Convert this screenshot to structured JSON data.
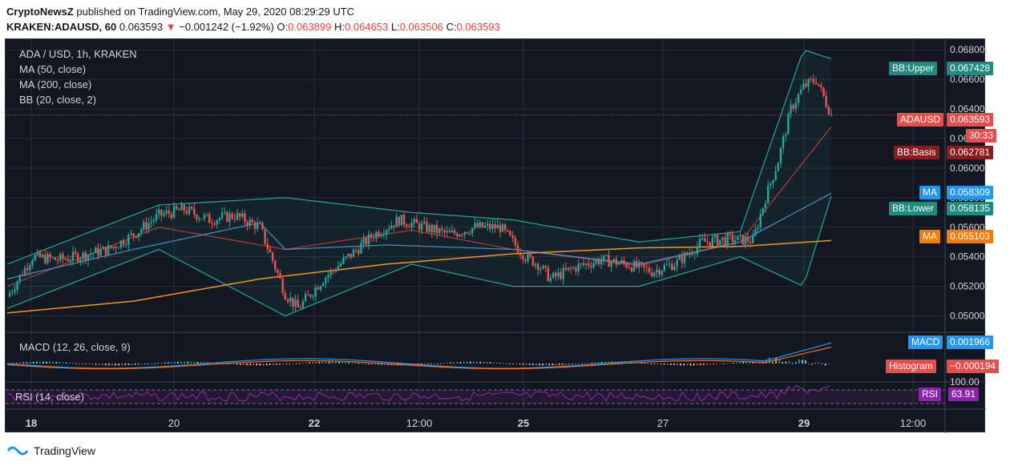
{
  "header": {
    "publisher": "CryptoNewsZ",
    "published_text": "published on TradingView.com, May 29, 2020 08:29:29 UTC",
    "symbol": "KRAKEN:ADAUSD, 60",
    "last": "0.063593",
    "change": "−0.001242 (−1.92%)",
    "o_label": "O:",
    "o": "0.063899",
    "h_label": "H:",
    "h": "0.064653",
    "l_label": "L:",
    "l": "0.063506",
    "c_label": "C:",
    "c": "0.063593"
  },
  "legend": {
    "title": "ADA / USD, 1h, KRAKEN",
    "ma50": "MA (50, close)",
    "ma200": "MA (200, close)",
    "bb": "BB (20, close, 2)",
    "macd": "MACD (12, 26, close, 9)",
    "rsi": "RSI (14, close)"
  },
  "price_tags": {
    "bb_upper_label": "BB:Upper",
    "bb_upper_value": "0.067428",
    "adausd_label": "ADAUSD",
    "adausd_value": "0.063593",
    "countdown": "30:33",
    "bb_basis_label": "BB:Basis",
    "bb_basis_value": "0.062781",
    "ma1_label": "MA",
    "ma1_value": "0.058309",
    "bb_lower_label": "BB:Lower",
    "bb_lower_value": "0.058135",
    "ma2_label": "MA",
    "ma2_value": "0.055103",
    "macd_label": "MACD",
    "macd_value": "0.001966",
    "hist_label": "Histogram",
    "hist_value": "−0.000194",
    "rsi_label": "RSI",
    "rsi_value": "63.91"
  },
  "footer": {
    "brand": "TradingView"
  },
  "colors": {
    "up": "#26a69a",
    "down": "#ef5350",
    "ma50": "#4a90c8",
    "ma200": "#f7931a",
    "bb_band": "#26a69a",
    "bb_basis": "#b73a3a",
    "macd": "#2196f3",
    "signal": "#ff6d00",
    "rsi": "#9c27b0",
    "tag_teal": "#1e8a80",
    "tag_red": "#e84c4c",
    "tag_darkred": "#8b1c1c",
    "tag_blue": "#2196f3",
    "tag_orange": "#f57c00",
    "tag_purple": "#8e24aa"
  },
  "chart_data": {
    "type": "candlestick",
    "title": "ADA / USD, 1h, KRAKEN",
    "x_tick_labels": [
      "18",
      "20",
      "22",
      "12:00",
      "25",
      "27",
      "29",
      "12:00"
    ],
    "y_tick_labels": [
      "0.050000",
      "0.052000",
      "0.054000",
      "0.056000",
      "0.058000",
      "0.060000",
      "0.062000",
      "0.064000",
      "0.066000",
      "0.068000"
    ],
    "ylim": [
      0.049,
      0.0685
    ],
    "rsi_tick_labels": [
      "100.00"
    ],
    "close_series": [
      [
        0,
        0.0513
      ],
      [
        10,
        0.054
      ],
      [
        20,
        0.0538
      ],
      [
        30,
        0.0541
      ],
      [
        40,
        0.0545
      ],
      [
        50,
        0.0555
      ],
      [
        60,
        0.0568
      ],
      [
        70,
        0.0572
      ],
      [
        80,
        0.0565
      ],
      [
        90,
        0.0568
      ],
      [
        100,
        0.056
      ],
      [
        110,
        0.0515
      ],
      [
        115,
        0.0505
      ],
      [
        125,
        0.0525
      ],
      [
        135,
        0.054
      ],
      [
        145,
        0.0555
      ],
      [
        155,
        0.0565
      ],
      [
        165,
        0.056
      ],
      [
        175,
        0.0555
      ],
      [
        185,
        0.056
      ],
      [
        195,
        0.056
      ],
      [
        205,
        0.054
      ],
      [
        210,
        0.0535
      ],
      [
        215,
        0.0525
      ],
      [
        225,
        0.0533
      ],
      [
        235,
        0.0538
      ],
      [
        245,
        0.0535
      ],
      [
        255,
        0.053
      ],
      [
        265,
        0.0536
      ],
      [
        275,
        0.055
      ],
      [
        285,
        0.0552
      ],
      [
        295,
        0.0551
      ],
      [
        300,
        0.058
      ],
      [
        305,
        0.0605
      ],
      [
        310,
        0.064
      ],
      [
        315,
        0.0655
      ],
      [
        320,
        0.066
      ],
      [
        326,
        0.0636
      ]
    ],
    "ma50_series": [
      [
        0,
        0.0525
      ],
      [
        50,
        0.0545
      ],
      [
        100,
        0.0563
      ],
      [
        110,
        0.0545
      ],
      [
        150,
        0.0548
      ],
      [
        200,
        0.0545
      ],
      [
        250,
        0.0535
      ],
      [
        290,
        0.055
      ],
      [
        326,
        0.0583
      ]
    ],
    "ma200_series": [
      [
        0,
        0.0502
      ],
      [
        50,
        0.051
      ],
      [
        100,
        0.0525
      ],
      [
        150,
        0.0535
      ],
      [
        200,
        0.0542
      ],
      [
        250,
        0.0546
      ],
      [
        290,
        0.0547
      ],
      [
        326,
        0.0551
      ]
    ],
    "bb_basis_series": [
      [
        0,
        0.052
      ],
      [
        60,
        0.056
      ],
      [
        110,
        0.0545
      ],
      [
        160,
        0.0558
      ],
      [
        200,
        0.0545
      ],
      [
        250,
        0.0534
      ],
      [
        290,
        0.055
      ],
      [
        326,
        0.0628
      ]
    ],
    "bb_upper_series": [
      [
        0,
        0.0535
      ],
      [
        60,
        0.0575
      ],
      [
        110,
        0.058
      ],
      [
        160,
        0.057
      ],
      [
        200,
        0.0565
      ],
      [
        250,
        0.055
      ],
      [
        290,
        0.0557
      ],
      [
        315,
        0.068
      ],
      [
        326,
        0.0674
      ]
    ],
    "bb_lower_series": [
      [
        0,
        0.0505
      ],
      [
        60,
        0.0545
      ],
      [
        110,
        0.05
      ],
      [
        160,
        0.0535
      ],
      [
        200,
        0.052
      ],
      [
        250,
        0.052
      ],
      [
        290,
        0.054
      ],
      [
        315,
        0.052
      ],
      [
        326,
        0.0581
      ]
    ]
  }
}
